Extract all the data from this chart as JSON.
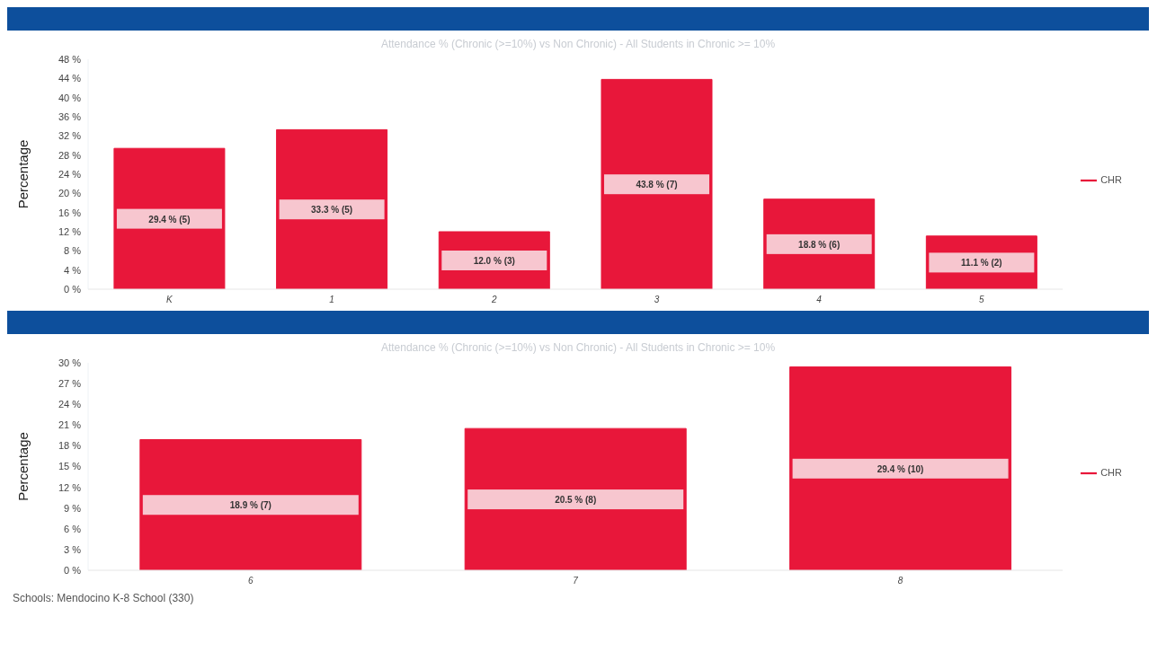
{
  "chart_data": [
    {
      "type": "bar",
      "title": "Attendance % (Chronic (>=10%) vs Non Chronic) - All Students in Chronic >= 10%",
      "ylabel": "Percentage",
      "categories": [
        "K",
        "1",
        "2",
        "3",
        "4",
        "5"
      ],
      "series": [
        {
          "name": "CHR",
          "color": "#e8173a",
          "values": [
            29.4,
            33.3,
            12.0,
            43.8,
            18.8,
            11.1
          ],
          "value_labels": [
            "29.4 % (5)",
            "33.3 % (5)",
            "12.0 % (3)",
            "43.8 % (7)",
            "18.8 % (6)",
            "11.1 % (2)"
          ]
        }
      ],
      "ylim": [
        0,
        48
      ],
      "yticks": [
        {
          "value": 0,
          "label": "0 %"
        },
        {
          "value": 4,
          "label": "4 %"
        },
        {
          "value": 8,
          "label": "8 %"
        },
        {
          "value": 12,
          "label": "12 %"
        },
        {
          "value": 16,
          "label": "16 %"
        },
        {
          "value": 20,
          "label": "20 %"
        },
        {
          "value": 24,
          "label": "24 %"
        },
        {
          "value": 28,
          "label": "28 %"
        },
        {
          "value": 32,
          "label": "32 %"
        },
        {
          "value": 36,
          "label": "36 %"
        },
        {
          "value": 40,
          "label": "40 %"
        },
        {
          "value": 44,
          "label": "44 %"
        },
        {
          "value": 48,
          "label": "48 %"
        }
      ],
      "legend": "right"
    },
    {
      "type": "bar",
      "title": "Attendance % (Chronic (>=10%) vs Non Chronic) - All Students in Chronic >= 10%",
      "ylabel": "Percentage",
      "categories": [
        "6",
        "7",
        "8"
      ],
      "series": [
        {
          "name": "CHR",
          "color": "#e8173a",
          "values": [
            18.9,
            20.5,
            29.4
          ],
          "value_labels": [
            "18.9 % (7)",
            "20.5 % (8)",
            "29.4 % (10)"
          ]
        }
      ],
      "ylim": [
        0,
        30
      ],
      "yticks": [
        {
          "value": 0,
          "label": "0 %"
        },
        {
          "value": 3,
          "label": "3 %"
        },
        {
          "value": 6,
          "label": "6 %"
        },
        {
          "value": 9,
          "label": "9 %"
        },
        {
          "value": 12,
          "label": "12 %"
        },
        {
          "value": 15,
          "label": "15 %"
        },
        {
          "value": 18,
          "label": "18 %"
        },
        {
          "value": 21,
          "label": "21 %"
        },
        {
          "value": 24,
          "label": "24 %"
        },
        {
          "value": 27,
          "label": "27 %"
        },
        {
          "value": 30,
          "label": "30 %"
        }
      ],
      "legend": "right",
      "annotations": [
        "Schools: Mendocino K-8 School (330)"
      ]
    }
  ]
}
